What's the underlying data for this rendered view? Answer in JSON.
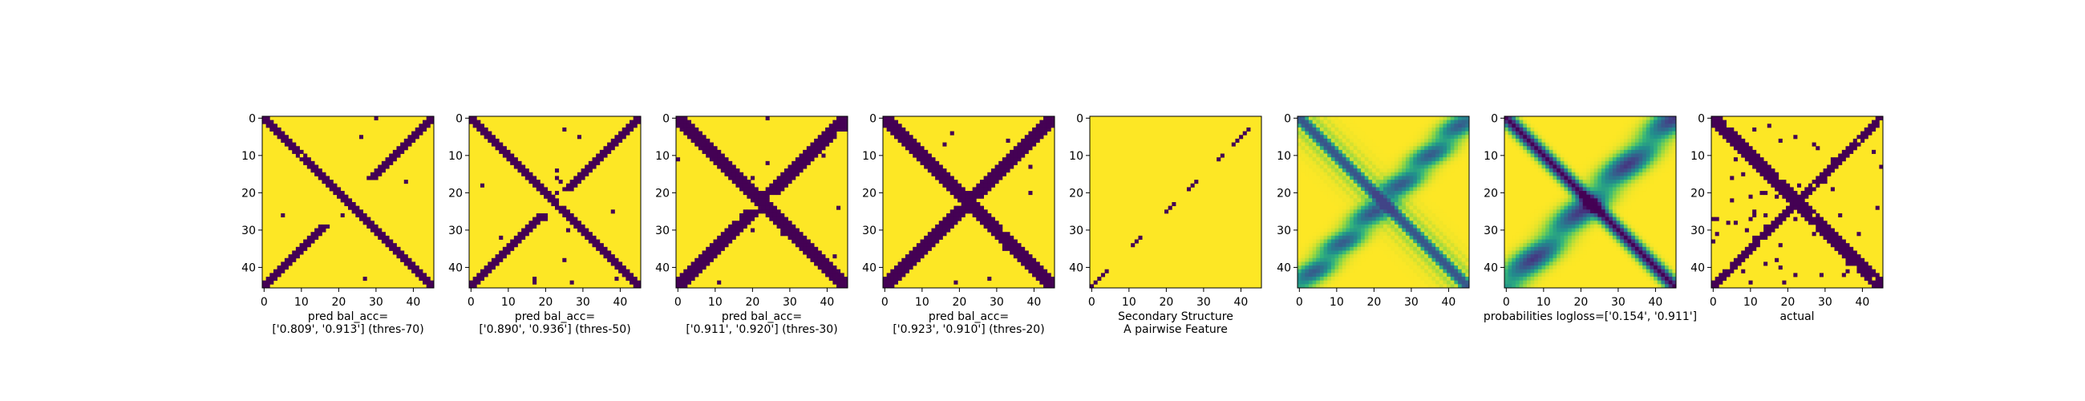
{
  "colors": {
    "background": "#ffffff",
    "viridis_low": "#440154",
    "viridis_high": "#fde725",
    "axis": "#000000"
  },
  "chart_data": [
    {
      "type": "heatmap",
      "title": "",
      "caption": [
        "pred bal_acc=",
        "['0.809', '0.913'] (thres-70)"
      ],
      "grid_size": 46,
      "xticks": [
        0,
        10,
        20,
        30,
        40
      ],
      "yticks": [
        0,
        10,
        20,
        30,
        40
      ],
      "xlim": [
        -0.5,
        45.5
      ],
      "ylim": [
        45.5,
        -0.5
      ],
      "colormap": "viridis",
      "value_range": [
        0,
        1
      ],
      "pattern": {
        "diag_width": 1.4,
        "anti_width": 1.0,
        "anti_gap": 12,
        "anti_extra": 1.5,
        "speckle": 0.006,
        "mode": "binary"
      }
    },
    {
      "type": "heatmap",
      "title": "",
      "caption": [
        "pred bal_acc=",
        "['0.890', '0.936'] (thres-50)"
      ],
      "grid_size": 46,
      "xticks": [
        0,
        10,
        20,
        30,
        40
      ],
      "yticks": [
        0,
        10,
        20,
        30,
        40
      ],
      "xlim": [
        -0.5,
        45.5
      ],
      "ylim": [
        45.5,
        -0.5
      ],
      "colormap": "viridis",
      "value_range": [
        0,
        1
      ],
      "pattern": {
        "diag_width": 1.8,
        "anti_width": 1.6,
        "anti_gap": 6,
        "anti_extra": 2.0,
        "speckle": 0.008,
        "mode": "binary"
      }
    },
    {
      "type": "heatmap",
      "title": "",
      "caption": [
        "pred bal_acc=",
        "['0.911', '0.920'] (thres-30)"
      ],
      "grid_size": 46,
      "xticks": [
        0,
        10,
        20,
        30,
        40
      ],
      "yticks": [
        0,
        10,
        20,
        30,
        40
      ],
      "xlim": [
        -0.5,
        45.5
      ],
      "ylim": [
        45.5,
        -0.5
      ],
      "colormap": "viridis",
      "value_range": [
        0,
        1
      ],
      "pattern": {
        "diag_width": 2.2,
        "anti_width": 2.2,
        "anti_gap": 4,
        "anti_extra": 2.6,
        "speckle": 0.006,
        "mode": "binary"
      }
    },
    {
      "type": "heatmap",
      "title": "",
      "caption": [
        "pred bal_acc=",
        "['0.923', '0.910'] (thres-20)"
      ],
      "grid_size": 46,
      "xticks": [
        0,
        10,
        20,
        30,
        40
      ],
      "yticks": [
        0,
        10,
        20,
        30,
        40
      ],
      "xlim": [
        -0.5,
        45.5
      ],
      "ylim": [
        45.5,
        -0.5
      ],
      "colormap": "viridis",
      "value_range": [
        0,
        1
      ],
      "pattern": {
        "diag_width": 2.7,
        "anti_width": 2.6,
        "anti_gap": 2,
        "anti_extra": 3.0,
        "speckle": 0.004,
        "mode": "binary"
      }
    },
    {
      "type": "heatmap",
      "title": "",
      "caption": [
        "Secondary Structure",
        "A pairwise Feature"
      ],
      "grid_size": 46,
      "xticks": [
        0,
        10,
        20,
        30,
        40
      ],
      "yticks": [
        0,
        10,
        20,
        30,
        40
      ],
      "xlim": [
        -0.5,
        45.5
      ],
      "ylim": [
        45.5,
        -0.5
      ],
      "colormap": "viridis",
      "value_range": [
        0,
        1
      ],
      "pattern": {
        "mode": "secondary",
        "segments": [
          [
            0,
            4
          ],
          [
            11,
            13
          ],
          [
            20,
            22
          ],
          [
            26,
            28
          ],
          [
            34,
            35
          ],
          [
            38,
            42
          ]
        ]
      }
    },
    {
      "type": "heatmap",
      "title": "",
      "caption": [
        "",
        ""
      ],
      "grid_size": 46,
      "xticks": [
        0,
        10,
        20,
        30,
        40
      ],
      "yticks": [
        0,
        10,
        20,
        30,
        40
      ],
      "xlim": [
        -0.5,
        45.5
      ],
      "ylim": [
        45.5,
        -0.5
      ],
      "colormap": "viridis",
      "value_range": [
        0,
        1
      ],
      "pattern": {
        "mode": "continuous-feature"
      }
    },
    {
      "type": "heatmap",
      "title": "",
      "caption": [
        "probabilities logloss=['0.154', '0.911']",
        ""
      ],
      "grid_size": 46,
      "xticks": [
        0,
        10,
        20,
        30,
        40
      ],
      "yticks": [
        0,
        10,
        20,
        30,
        40
      ],
      "xlim": [
        -0.5,
        45.5
      ],
      "ylim": [
        45.5,
        -0.5
      ],
      "colormap": "viridis",
      "value_range": [
        0,
        1
      ],
      "pattern": {
        "mode": "continuous-prob"
      }
    },
    {
      "type": "heatmap",
      "title": "",
      "caption": [
        "actual",
        ""
      ],
      "grid_size": 46,
      "xticks": [
        0,
        10,
        20,
        30,
        40
      ],
      "yticks": [
        0,
        10,
        20,
        30,
        40
      ],
      "xlim": [
        -0.5,
        45.5
      ],
      "ylim": [
        45.5,
        -0.5
      ],
      "colormap": "viridis",
      "value_range": [
        0,
        1
      ],
      "pattern": {
        "diag_width": 2.0,
        "anti_width": 1.6,
        "anti_gap": 0,
        "anti_extra": 0,
        "speckle": 0.03,
        "mode": "binary"
      }
    }
  ]
}
